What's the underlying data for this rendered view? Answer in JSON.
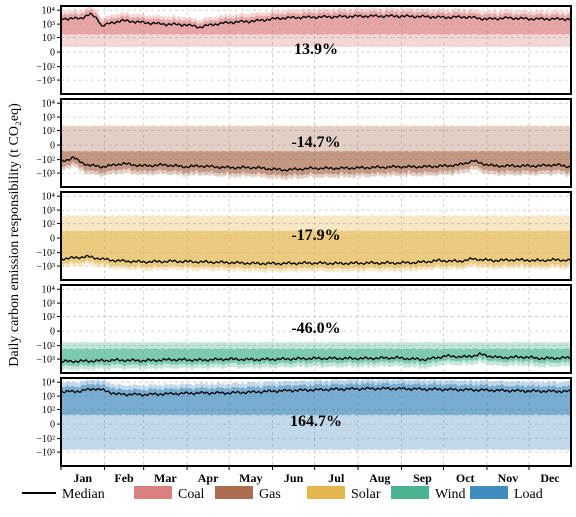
{
  "chart_data": {
    "type": "line",
    "ylabel": "Daily carbon emission responsibility (t CO₂eq)",
    "x_axis": {
      "unit": "day of year",
      "range": [
        1,
        365
      ],
      "tick_labels": [
        "Jan",
        "Feb",
        "Mar",
        "Apr",
        "May",
        "Jun",
        "Jul",
        "Aug",
        "Sep",
        "Oct",
        "Nov",
        "Dec"
      ]
    },
    "y_axis": {
      "scale": "symlog",
      "ylim": [
        -10000,
        20000
      ],
      "tick_labels": [
        "10⁴",
        "10³",
        "10²",
        "0",
        "−10²",
        "−10³"
      ]
    },
    "grid": true,
    "legend_location": "bottom",
    "legend": [
      {
        "label": "Median",
        "color": "#000000",
        "kind": "line"
      },
      {
        "label": "Coal",
        "color": "#d46a6a",
        "kind": "patch"
      },
      {
        "label": "Gas",
        "color": "#9c5230",
        "kind": "patch"
      },
      {
        "label": "Solar",
        "color": "#e0a82e",
        "kind": "patch"
      },
      {
        "label": "Wind",
        "color": "#2aa77f",
        "kind": "patch"
      },
      {
        "label": "Load",
        "color": "#1f77b4",
        "kind": "patch"
      }
    ],
    "panels": [
      {
        "name": "Coal",
        "color": "#d46a6a",
        "annotation": "13.9%",
        "median": [
          [
            1,
            2500
          ],
          [
            15,
            2600
          ],
          [
            22,
            5000
          ],
          [
            30,
            700
          ],
          [
            45,
            1800
          ],
          [
            60,
            1300
          ],
          [
            75,
            1000
          ],
          [
            90,
            900
          ],
          [
            100,
            600
          ],
          [
            120,
            1300
          ],
          [
            140,
            1700
          ],
          [
            160,
            2800
          ],
          [
            180,
            3200
          ],
          [
            200,
            3500
          ],
          [
            220,
            3800
          ],
          [
            240,
            3800
          ],
          [
            260,
            3500
          ],
          [
            275,
            3100
          ],
          [
            290,
            3300
          ],
          [
            305,
            2300
          ],
          [
            320,
            2800
          ],
          [
            335,
            2400
          ],
          [
            350,
            2400
          ],
          [
            365,
            2300
          ]
        ],
        "band_outer": {
          "low": 15,
          "high_factor": 3.2
        },
        "band_inner": {
          "low": 200,
          "high_factor": 1.8
        }
      },
      {
        "name": "Gas",
        "color": "#9c5230",
        "annotation": "-14.7%",
        "median": [
          [
            1,
            -150
          ],
          [
            10,
            -60
          ],
          [
            20,
            -250
          ],
          [
            30,
            -350
          ],
          [
            45,
            -200
          ],
          [
            60,
            -300
          ],
          [
            75,
            -250
          ],
          [
            90,
            -350
          ],
          [
            100,
            -300
          ],
          [
            120,
            -400
          ],
          [
            140,
            -400
          ],
          [
            160,
            -600
          ],
          [
            180,
            -450
          ],
          [
            200,
            -450
          ],
          [
            220,
            -400
          ],
          [
            240,
            -350
          ],
          [
            260,
            -350
          ],
          [
            275,
            -300
          ],
          [
            285,
            -250
          ],
          [
            295,
            -120
          ],
          [
            310,
            -300
          ],
          [
            325,
            -300
          ],
          [
            340,
            -300
          ],
          [
            355,
            -250
          ],
          [
            365,
            -350
          ]
        ],
        "band_outer": {
          "low_factor": 4.0,
          "high": 200
        },
        "band_inner": {
          "low_factor": 2.2,
          "high": -20
        }
      },
      {
        "name": "Solar",
        "color": "#e0a82e",
        "annotation": "-17.9%",
        "median": [
          [
            1,
            -300
          ],
          [
            20,
            -200
          ],
          [
            40,
            -400
          ],
          [
            60,
            -500
          ],
          [
            80,
            -450
          ],
          [
            100,
            -500
          ],
          [
            120,
            -550
          ],
          [
            140,
            -650
          ],
          [
            160,
            -650
          ],
          [
            180,
            -600
          ],
          [
            200,
            -650
          ],
          [
            220,
            -600
          ],
          [
            240,
            -600
          ],
          [
            255,
            -550
          ],
          [
            270,
            -400
          ],
          [
            285,
            -450
          ],
          [
            295,
            -300
          ],
          [
            310,
            -400
          ],
          [
            325,
            -350
          ],
          [
            340,
            -400
          ],
          [
            355,
            -350
          ],
          [
            365,
            -400
          ]
        ],
        "band_outer": {
          "low_factor": 3.5,
          "high": 350
        },
        "band_inner": {
          "low_factor": 2.0,
          "high": 20
        }
      },
      {
        "name": "Wind",
        "color": "#2aa77f",
        "annotation": "-46.0%",
        "median": [
          [
            1,
            -1500
          ],
          [
            20,
            -1400
          ],
          [
            40,
            -1200
          ],
          [
            60,
            -1300
          ],
          [
            80,
            -1100
          ],
          [
            100,
            -1200
          ],
          [
            120,
            -1000
          ],
          [
            140,
            -1100
          ],
          [
            160,
            -1000
          ],
          [
            180,
            -900
          ],
          [
            200,
            -900
          ],
          [
            220,
            -900
          ],
          [
            240,
            -800
          ],
          [
            260,
            -1100
          ],
          [
            275,
            -600
          ],
          [
            290,
            -700
          ],
          [
            300,
            -450
          ],
          [
            315,
            -800
          ],
          [
            330,
            -700
          ],
          [
            345,
            -900
          ],
          [
            365,
            -800
          ]
        ],
        "band_outer": {
          "low_factor": 3.5,
          "high": -60
        },
        "band_inner": {
          "low_factor": 1.8,
          "high": -200
        }
      },
      {
        "name": "Load",
        "color": "#1f77b4",
        "annotation": "164.7%",
        "median": [
          [
            1,
            2000
          ],
          [
            15,
            2300
          ],
          [
            25,
            3500
          ],
          [
            40,
            1400
          ],
          [
            60,
            1300
          ],
          [
            80,
            1500
          ],
          [
            100,
            1700
          ],
          [
            120,
            1700
          ],
          [
            140,
            2000
          ],
          [
            160,
            2500
          ],
          [
            180,
            2800
          ],
          [
            200,
            3200
          ],
          [
            220,
            3500
          ],
          [
            240,
            3500
          ],
          [
            260,
            3200
          ],
          [
            280,
            3000
          ],
          [
            300,
            2800
          ],
          [
            320,
            2500
          ],
          [
            340,
            2300
          ],
          [
            365,
            2200
          ]
        ],
        "band_outer": {
          "low": -600,
          "high_factor": 4.0
        },
        "band_inner": {
          "low": 40,
          "high_factor": 2.0
        }
      }
    ]
  }
}
